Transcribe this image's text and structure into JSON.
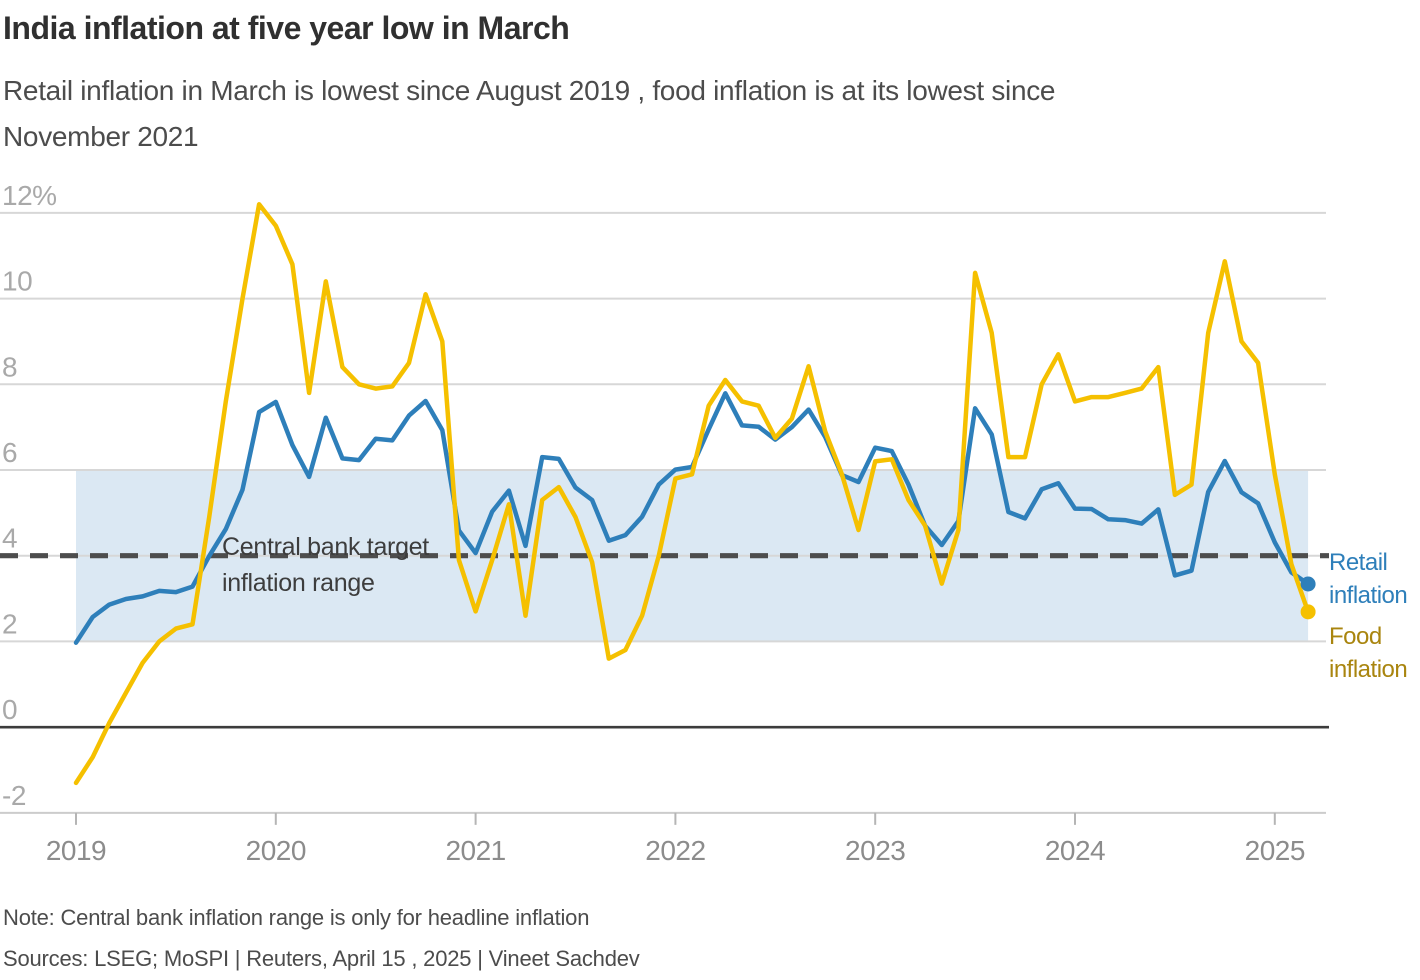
{
  "header": {
    "title": "India inflation at five year low in March",
    "subtitle_lines": [
      "Retail inflation in March is lowest since August 2019 , food inflation is at its lowest since",
      "November 2021"
    ]
  },
  "annotation": {
    "lines": [
      "Central bank target",
      "inflation range"
    ]
  },
  "legend": {
    "retail_label": "Retail inflation",
    "food_label": "Food inflation"
  },
  "footer": {
    "note": "Note: Central bank inflation range is only for headline inflation",
    "sources": "Sources: LSEG; MoSPI | Reuters, April 15 , 2025 | Vineet Sachdev"
  },
  "colors": {
    "retail_line": "#2e7fba",
    "food_line": "#f5c000",
    "retail_legend_text": "#2e7fba",
    "food_legend_text": "#a9850f",
    "target_band_fill": "#dbe8f3",
    "target_dash_line": "#4d4d4d",
    "gridline": "#d7d7d7",
    "zero_line": "#3c3c3c",
    "axis_line": "#cccccc",
    "axis_tick": "#b5b5b5",
    "y_tick_label": "#a9a9a9",
    "x_tick_label": "#8c8c8c"
  },
  "chart_data": {
    "type": "line",
    "title": "India inflation at five year low in March",
    "x_start": "2019-01",
    "x_end": "2025-03",
    "x_frequency": "monthly",
    "x_tick_labels": [
      "2019",
      "2020",
      "2021",
      "2022",
      "2023",
      "2024",
      "2025"
    ],
    "y_tick_labels": [
      "12%",
      "10",
      "8",
      "6",
      "4",
      "2",
      "0",
      "-2"
    ],
    "y_tick_values": [
      12,
      10,
      8,
      6,
      4,
      2,
      0,
      -2
    ],
    "ylim": [
      -2,
      12
    ],
    "grid": true,
    "legend_position": "right-end-of-lines",
    "target_band": {
      "label": "Central bank target inflation range",
      "from": 2,
      "to": 6
    },
    "target_line_value": 4,
    "series": [
      {
        "name": "Retail inflation",
        "color": "#2e7fba",
        "end_dot": true,
        "values": [
          1.97,
          2.57,
          2.86,
          2.99,
          3.05,
          3.18,
          3.15,
          3.28,
          3.99,
          4.62,
          5.54,
          7.35,
          7.59,
          6.58,
          5.84,
          7.22,
          6.27,
          6.23,
          6.73,
          6.69,
          7.27,
          7.61,
          6.93,
          4.59,
          4.06,
          5.03,
          5.52,
          4.23,
          6.3,
          6.26,
          5.59,
          5.3,
          4.35,
          4.48,
          4.91,
          5.66,
          6.01,
          6.07,
          6.95,
          7.79,
          7.04,
          7.01,
          6.71,
          7.0,
          7.41,
          6.77,
          5.88,
          5.72,
          6.52,
          6.44,
          5.66,
          4.7,
          4.25,
          4.81,
          7.44,
          6.83,
          5.02,
          4.87,
          5.55,
          5.69,
          5.1,
          5.09,
          4.85,
          4.83,
          4.75,
          5.08,
          3.54,
          3.65,
          5.49,
          6.21,
          5.48,
          5.22,
          4.31,
          3.61,
          3.34
        ]
      },
      {
        "name": "Food inflation",
        "color": "#f5c000",
        "end_dot": true,
        "values": [
          -1.3,
          -0.7,
          0.1,
          0.8,
          1.5,
          2.0,
          2.3,
          2.4,
          4.9,
          7.6,
          10.0,
          12.2,
          11.7,
          10.8,
          7.8,
          10.4,
          8.4,
          8.0,
          7.9,
          7.95,
          8.5,
          10.1,
          9.0,
          3.9,
          2.7,
          3.9,
          5.2,
          2.6,
          5.3,
          5.6,
          4.9,
          3.85,
          1.6,
          1.8,
          2.6,
          4.0,
          5.8,
          5.9,
          7.5,
          8.1,
          7.6,
          7.5,
          6.75,
          7.2,
          8.42,
          6.9,
          5.9,
          4.6,
          6.2,
          6.25,
          5.3,
          4.7,
          3.35,
          4.6,
          10.6,
          9.2,
          6.3,
          6.3,
          8.0,
          8.7,
          7.6,
          7.7,
          7.7,
          7.8,
          7.9,
          8.4,
          5.42,
          5.66,
          9.2,
          10.87,
          9.0,
          8.5,
          5.9,
          3.8,
          2.69
        ]
      }
    ]
  }
}
